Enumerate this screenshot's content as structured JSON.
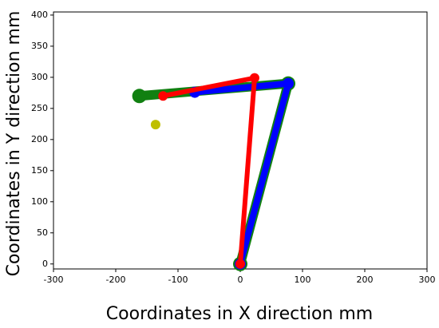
{
  "chart_data": {
    "type": "line",
    "x_label": "Coordinates in X direction mm",
    "y_label": "Coordinates in Y direction mm",
    "xlim": [
      -300,
      300
    ],
    "xticks": [
      -300,
      -200,
      -100,
      0,
      100,
      200,
      300
    ],
    "ylim": [
      -8,
      405
    ],
    "yticks": [
      0,
      50,
      100,
      150,
      200,
      250,
      300,
      350,
      400
    ],
    "grid": false,
    "series": [
      {
        "color": "#118011",
        "x": [
          0,
          77,
          -162
        ],
        "values": [
          0,
          290,
          270
        ]
      },
      {
        "color": "#0000ff",
        "x": [
          0,
          77,
          -73
        ],
        "values": [
          0,
          290,
          276
        ]
      },
      {
        "color": "#ff0000",
        "x": [
          0,
          23,
          -124
        ],
        "values": [
          0,
          299,
          270
        ]
      },
      {
        "color": "#bfbf00",
        "x": [
          -136
        ],
        "values": [
          224
        ],
        "marker_only": true
      }
    ]
  }
}
